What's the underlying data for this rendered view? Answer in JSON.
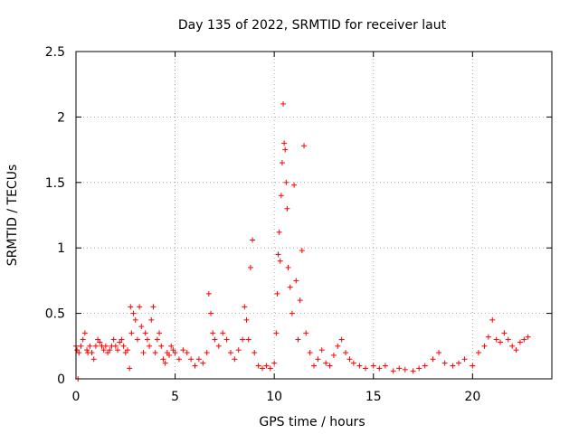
{
  "chart_data": {
    "type": "scatter",
    "title": "Day 135 of 2022, SRMTID for receiver laut",
    "xlabel": "GPS time / hours",
    "ylabel": "SRMTID / TECUs",
    "xlim": [
      0,
      24
    ],
    "ylim": [
      0,
      2.5
    ],
    "xticks": [
      0,
      5,
      10,
      15,
      20
    ],
    "yticks": [
      0,
      0.5,
      1,
      1.5,
      2,
      2.5
    ],
    "xtick_labels": [
      "0",
      "5",
      "10",
      "15",
      "20"
    ],
    "ytick_labels": [
      "0",
      "0.5",
      "1",
      "1.5",
      "2",
      "2.5"
    ],
    "grid": true,
    "marker": "+",
    "series": [
      {
        "name": "SRMTID",
        "color": "#ff0000",
        "x": [
          0.0,
          0.05,
          0.1,
          0.15,
          0.25,
          0.35,
          0.45,
          0.55,
          0.6,
          0.7,
          0.8,
          0.9,
          1.0,
          1.1,
          1.2,
          1.3,
          1.4,
          1.5,
          1.6,
          1.7,
          1.8,
          1.9,
          2.0,
          2.1,
          2.2,
          2.3,
          2.4,
          2.5,
          2.6,
          2.7,
          2.75,
          2.8,
          2.9,
          3.0,
          3.1,
          3.2,
          3.3,
          3.4,
          3.5,
          3.6,
          3.7,
          3.8,
          3.9,
          4.0,
          4.1,
          4.2,
          4.3,
          4.4,
          4.5,
          4.6,
          4.7,
          4.8,
          4.9,
          5.0,
          5.2,
          5.4,
          5.6,
          5.8,
          6.0,
          6.2,
          6.4,
          6.6,
          6.7,
          6.8,
          6.9,
          7.0,
          7.2,
          7.4,
          7.6,
          7.8,
          8.0,
          8.2,
          8.4,
          8.5,
          8.6,
          8.7,
          8.8,
          8.9,
          9.0,
          9.2,
          9.4,
          9.6,
          9.8,
          10.0,
          10.1,
          10.15,
          10.2,
          10.25,
          10.3,
          10.35,
          10.4,
          10.45,
          10.5,
          10.55,
          10.6,
          10.65,
          10.7,
          10.8,
          10.9,
          11.0,
          11.1,
          11.2,
          11.3,
          11.4,
          11.5,
          11.6,
          11.8,
          12.0,
          12.2,
          12.4,
          12.6,
          12.8,
          13.0,
          13.2,
          13.4,
          13.6,
          13.8,
          14.0,
          14.3,
          14.6,
          15.0,
          15.3,
          15.6,
          16.0,
          16.3,
          16.6,
          17.0,
          17.3,
          17.6,
          18.0,
          18.3,
          18.6,
          19.0,
          19.3,
          19.6,
          20.0,
          20.3,
          20.6,
          20.8,
          21.0,
          21.2,
          21.4,
          21.6,
          21.8,
          22.0,
          22.2,
          22.4,
          22.6,
          22.8
        ],
        "y": [
          0.25,
          0.22,
          0.0,
          0.2,
          0.25,
          0.3,
          0.35,
          0.22,
          0.2,
          0.25,
          0.2,
          0.15,
          0.25,
          0.3,
          0.28,
          0.25,
          0.22,
          0.25,
          0.2,
          0.22,
          0.25,
          0.3,
          0.25,
          0.22,
          0.28,
          0.3,
          0.25,
          0.2,
          0.22,
          0.08,
          0.55,
          0.35,
          0.5,
          0.45,
          0.3,
          0.55,
          0.4,
          0.2,
          0.35,
          0.3,
          0.25,
          0.45,
          0.55,
          0.2,
          0.3,
          0.35,
          0.25,
          0.15,
          0.12,
          0.2,
          0.18,
          0.25,
          0.22,
          0.2,
          0.15,
          0.22,
          0.2,
          0.15,
          0.1,
          0.15,
          0.12,
          0.2,
          0.65,
          0.5,
          0.35,
          0.3,
          0.25,
          0.35,
          0.3,
          0.2,
          0.15,
          0.22,
          0.3,
          0.55,
          0.45,
          0.3,
          0.85,
          1.06,
          0.2,
          0.1,
          0.08,
          0.1,
          0.08,
          0.12,
          0.35,
          0.65,
          0.95,
          1.12,
          0.9,
          1.4,
          1.65,
          2.1,
          1.8,
          1.75,
          1.5,
          1.3,
          0.85,
          0.7,
          0.5,
          1.48,
          0.75,
          0.3,
          0.6,
          0.98,
          1.78,
          0.35,
          0.2,
          0.1,
          0.15,
          0.22,
          0.12,
          0.1,
          0.18,
          0.25,
          0.3,
          0.2,
          0.15,
          0.12,
          0.1,
          0.08,
          0.1,
          0.08,
          0.1,
          0.06,
          0.08,
          0.07,
          0.06,
          0.08,
          0.1,
          0.15,
          0.2,
          0.12,
          0.1,
          0.12,
          0.15,
          0.1,
          0.2,
          0.25,
          0.32,
          0.45,
          0.3,
          0.28,
          0.35,
          0.3,
          0.25,
          0.22,
          0.28,
          0.3,
          0.32
        ]
      }
    ]
  }
}
